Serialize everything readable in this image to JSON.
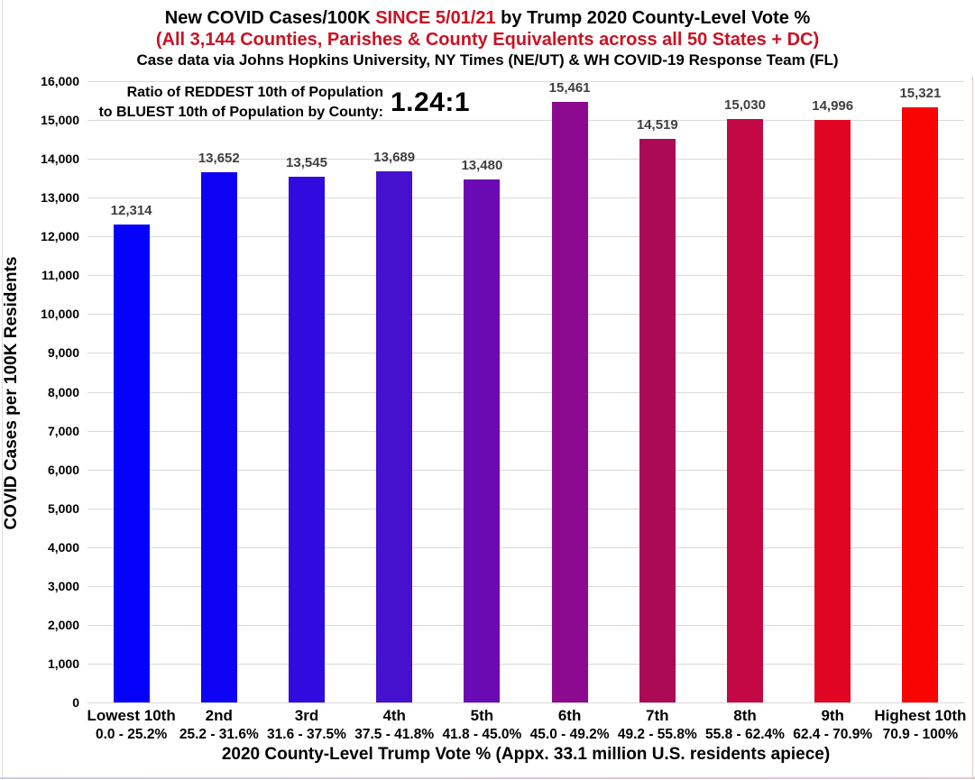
{
  "header": {
    "title_part1": "New COVID Cases/100K ",
    "title_highlight": "SINCE 5/01/21",
    "title_part2": " by Trump 2020 County-Level Vote %",
    "subtitle": "(All 3,144 Counties, Parishes & County Equivalents across all 50 States + DC)",
    "source_line": "Case data via Johns Hopkins University, NY Times (NE/UT) & WH COVID-19 Response Team (FL)",
    "highlight_color": "#cc1122"
  },
  "annotation": {
    "line1": "Ratio of REDDEST 10th of Population",
    "line2": "to BLUEST 10th of Population by County:",
    "ratio": "1.24:1"
  },
  "chart_data": {
    "type": "bar",
    "title": "New COVID Cases/100K SINCE 5/01/21 by Trump 2020 County-Level Vote %",
    "categories": [
      "Lowest 10th",
      "2nd",
      "3rd",
      "4th",
      "5th",
      "6th",
      "7th",
      "8th",
      "9th",
      "Highest 10th"
    ],
    "category_ranges": [
      "0.0 - 25.2%",
      "25.2 - 31.6%",
      "31.6 - 37.5%",
      "37.5 - 41.8%",
      "41.8 - 45.0%",
      "45.0 - 49.2%",
      "49.2 - 55.8%",
      "55.8 - 62.4%",
      "62.4 - 70.9%",
      "70.9 - 100%"
    ],
    "values": [
      12314,
      13652,
      13545,
      13689,
      13480,
      15461,
      14519,
      15030,
      14996,
      15321
    ],
    "value_labels": [
      "12,314",
      "13,652",
      "13,545",
      "13,689",
      "13,480",
      "15,461",
      "14,519",
      "15,030",
      "14,996",
      "15,321"
    ],
    "bar_colors": [
      "#0500fa",
      "#0e02f5",
      "#2f0be0",
      "#4510ce",
      "#6a0ab2",
      "#8b0a90",
      "#ad0a56",
      "#c30845",
      "#e00622",
      "#fa0303"
    ],
    "xlabel": "2020 County-Level Trump Vote % (Appx. 33.1 million U.S. residents apiece)",
    "ylabel": "COVID Cases per 100K Residents",
    "ylim": [
      0,
      16000
    ],
    "ytick_step": 1000,
    "ytick_labels": [
      "0",
      "1,000",
      "2,000",
      "3,000",
      "4,000",
      "5,000",
      "6,000",
      "7,000",
      "8,000",
      "9,000",
      "10,000",
      "11,000",
      "12,000",
      "13,000",
      "14,000",
      "15,000",
      "16,000"
    ],
    "grid": true,
    "gridline_color": "#d9d9d9",
    "value_label_color": "#3f3f3f",
    "legend": "none"
  }
}
